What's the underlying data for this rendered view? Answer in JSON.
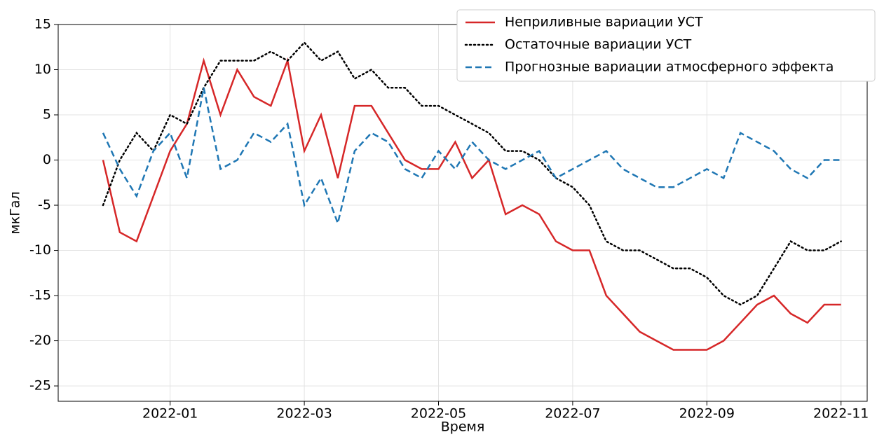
{
  "chart_data": {
    "type": "line",
    "x_label": "Время",
    "y_label": "мкГал",
    "x": [
      "2021-12",
      "2021-12",
      "2021-12",
      "2021-12",
      "2022-01",
      "2022-01",
      "2022-01",
      "2022-01",
      "2022-02",
      "2022-02",
      "2022-02",
      "2022-02",
      "2022-03",
      "2022-03",
      "2022-03",
      "2022-03",
      "2022-04",
      "2022-04",
      "2022-04",
      "2022-04",
      "2022-05",
      "2022-05",
      "2022-05",
      "2022-05",
      "2022-06",
      "2022-06",
      "2022-06",
      "2022-06",
      "2022-07",
      "2022-07",
      "2022-07",
      "2022-07",
      "2022-08",
      "2022-08",
      "2022-08",
      "2022-08",
      "2022-09",
      "2022-09",
      "2022-09",
      "2022-09",
      "2022-10",
      "2022-10",
      "2022-10",
      "2022-10",
      "2022-11"
    ],
    "series": [
      {
        "name": "Неприливные вариации УСТ",
        "color": "#d62728",
        "linestyle": "solid",
        "values": [
          0,
          -8,
          -9,
          -4,
          1,
          4,
          11,
          5,
          10,
          7,
          6,
          11,
          1,
          5,
          -2,
          6,
          6,
          3,
          0,
          -1,
          -1,
          2,
          -2,
          0,
          -6,
          -5,
          -6,
          -9,
          -10,
          -10,
          -15,
          -17,
          -19,
          -20,
          -21,
          -21,
          -21,
          -20,
          -18,
          -16,
          -15,
          -17,
          -18,
          -16,
          -16
        ]
      },
      {
        "name": "Остаточные вариации УСТ",
        "color": "#000000",
        "linestyle": "dotted",
        "values": [
          -5,
          0,
          3,
          1,
          5,
          4,
          8,
          11,
          11,
          11,
          12,
          11,
          13,
          11,
          12,
          9,
          10,
          8,
          8,
          6,
          6,
          5,
          4,
          3,
          1,
          1,
          0,
          -2,
          -3,
          -5,
          -9,
          -10,
          -10,
          -11,
          -12,
          -12,
          -13,
          -15,
          -16,
          -15,
          -12,
          -9,
          -10,
          -10,
          -9
        ]
      },
      {
        "name": "Прогнозные вариации атмосферного эффекта",
        "color": "#1f77b4",
        "linestyle": "dashed",
        "values": [
          3,
          -1,
          -4,
          1,
          3,
          -2,
          8,
          -1,
          0,
          3,
          2,
          4,
          -5,
          -2,
          -7,
          1,
          3,
          2,
          -1,
          -2,
          1,
          -1,
          2,
          0,
          -1,
          0,
          1,
          -2,
          -1,
          0,
          1,
          -1,
          -2,
          -3,
          -3,
          -2,
          -1,
          -2,
          3,
          2,
          1,
          -1,
          -2,
          0,
          0
        ]
      }
    ],
    "xticks": [
      "2022-01",
      "2022-03",
      "2022-05",
      "2022-07",
      "2022-09",
      "2022-11"
    ],
    "ylim": [
      -26.7,
      15
    ],
    "yticks": [
      -25,
      -20,
      -15,
      -10,
      -5,
      0,
      5,
      10,
      15
    ],
    "grid": true,
    "legend": "upper right"
  }
}
